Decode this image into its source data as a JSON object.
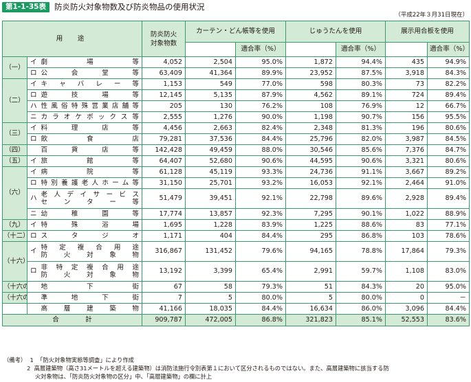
{
  "header": {
    "badge": "第1-1-35表",
    "title": "防炎防火対象物数及び防炎物品の使用状況",
    "as_of": "（平成22年３月31日現在）"
  },
  "columns": {
    "use": "用　途",
    "count": "防炎防火\n対象物数",
    "curtain": "カーテン・どん帳等を使用",
    "carpet": "じゅうたんを使用",
    "display": "展示用合板を使用",
    "rate": "適合率（%）"
  },
  "rows": [
    {
      "cat": "（一）",
      "mark": "イ",
      "name": [
        "劇　　場　　等"
      ],
      "count": "4,052",
      "curtain": "2,504",
      "curtain_rate": "95.0%",
      "carpet": "1,872",
      "carpet_rate": "94.4%",
      "display": "435",
      "display_rate": "94.9%"
    },
    {
      "cat": "",
      "mark": "ロ",
      "name": [
        "公　会　堂　等"
      ],
      "count": "63,409",
      "curtain": "41,364",
      "curtain_rate": "89.9%",
      "carpet": "23,952",
      "carpet_rate": "87.5%",
      "display": "3,918",
      "display_rate": "84.3%"
    },
    {
      "cat": "（二）",
      "mark": "イ",
      "name": [
        "キ ャ バ レ ー 等"
      ],
      "count": "1,153",
      "curtain": "549",
      "curtain_rate": "77.0%",
      "carpet": "598",
      "carpet_rate": "80.3%",
      "display": "73",
      "display_rate": "82.2%"
    },
    {
      "cat": "",
      "mark": "ロ",
      "name": [
        "遊　技　場　等"
      ],
      "count": "12,145",
      "curtain": "5,135",
      "curtain_rate": "87.9%",
      "carpet": "4,562",
      "carpet_rate": "89.1%",
      "display": "724",
      "display_rate": "89.4%"
    },
    {
      "cat": "",
      "mark": "ハ",
      "name": [
        "性風俗特殊営業店舗等"
      ],
      "count": "205",
      "curtain": "130",
      "curtain_rate": "76.2%",
      "carpet": "108",
      "carpet_rate": "76.9%",
      "display": "12",
      "display_rate": "66.7%"
    },
    {
      "cat": "",
      "mark": "ニ",
      "name": [
        "カラオケボックス等"
      ],
      "count": "2,555",
      "curtain": "1,276",
      "curtain_rate": "90.0%",
      "carpet": "1,198",
      "carpet_rate": "90.7%",
      "display": "156",
      "display_rate": "95.5%"
    },
    {
      "cat": "（三）",
      "mark": "イ",
      "name": [
        "料　理　店　等"
      ],
      "count": "4,456",
      "curtain": "2,663",
      "curtain_rate": "82.4%",
      "carpet": "2,348",
      "carpet_rate": "81.3%",
      "display": "196",
      "display_rate": "80.6%"
    },
    {
      "cat": "",
      "mark": "ロ",
      "name": [
        "飲　　食　　店"
      ],
      "count": "79,281",
      "curtain": "37,536",
      "curtain_rate": "84.4%",
      "carpet": "25,796",
      "carpet_rate": "82.0%",
      "display": "3,987",
      "display_rate": "84.5%"
    },
    {
      "cat": "（四）",
      "mark": "",
      "name": [
        "百　貨　店　等"
      ],
      "count": "142,428",
      "curtain": "49,459",
      "curtain_rate": "88.0%",
      "carpet": "30,546",
      "carpet_rate": "85.6%",
      "display": "7,376",
      "display_rate": "84.7%"
    },
    {
      "cat": "（五）",
      "mark": "イ",
      "name": [
        "旅　　館　　等"
      ],
      "count": "64,407",
      "curtain": "52,680",
      "curtain_rate": "90.6%",
      "carpet": "44,595",
      "carpet_rate": "90.6%",
      "display": "3,321",
      "display_rate": "80.6%"
    },
    {
      "cat": "（六）",
      "mark": "イ",
      "name": [
        "病　　院　　等"
      ],
      "count": "61,128",
      "curtain": "45,119",
      "curtain_rate": "93.3%",
      "carpet": "24,736",
      "carpet_rate": "91.1%",
      "display": "3,667",
      "display_rate": "89.2%"
    },
    {
      "cat": "",
      "mark": "ロ",
      "name": [
        "特別養護老人ホーム等"
      ],
      "count": "31,150",
      "curtain": "25,701",
      "curtain_rate": "93.2%",
      "carpet": "16,053",
      "carpet_rate": "92.1%",
      "display": "2,464",
      "display_rate": "91.0%"
    },
    {
      "cat": "",
      "mark": "ハ",
      "name": [
        "老人デイサービス",
        "セ ン タ ー 等"
      ],
      "count": "51,479",
      "curtain": "39,451",
      "curtain_rate": "92.1%",
      "carpet": "22,798",
      "carpet_rate": "89.6%",
      "display": "2,928",
      "display_rate": "89.4%"
    },
    {
      "cat": "",
      "mark": "ニ",
      "name": [
        "幼　稚　園　等"
      ],
      "count": "17,774",
      "curtain": "13,857",
      "curtain_rate": "92.3%",
      "carpet": "7,295",
      "carpet_rate": "90.1%",
      "display": "1,022",
      "display_rate": "88.9%"
    },
    {
      "cat": "（九）",
      "mark": "イ",
      "name": [
        "特　殊　浴　場"
      ],
      "count": "1,695",
      "curtain": "1,228",
      "curtain_rate": "83.9%",
      "carpet": "1,225",
      "carpet_rate": "88.6%",
      "display": "83",
      "display_rate": "77.1%"
    },
    {
      "cat": "（十二）",
      "mark": "ロ",
      "name": [
        "ス　タ　ジ　オ"
      ],
      "count": "1,171",
      "curtain": "404",
      "curtain_rate": "84.4%",
      "carpet": "295",
      "carpet_rate": "86.8%",
      "display": "103",
      "display_rate": "78.6%"
    },
    {
      "cat": "（十六）",
      "mark": "イ",
      "name": [
        "特 定 複 合 用 途",
        "防　火　対　象　物"
      ],
      "count": "316,867",
      "curtain": "131,452",
      "curtain_rate": "79.6%",
      "carpet": "94,165",
      "carpet_rate": "78.8%",
      "display": "17,864",
      "display_rate": "79.3%"
    },
    {
      "cat": "",
      "mark": "ロ",
      "name": [
        "非 特 定 複 合 用 途",
        "防　火　対　象　物"
      ],
      "count": "13,192",
      "curtain": "3,399",
      "curtain_rate": "65.4%",
      "carpet": "2,991",
      "carpet_rate": "59.7%",
      "display": "1,108",
      "display_rate": "83.0%"
    },
    {
      "cat": "（十六の二）",
      "mark": "",
      "name": [
        "地　　下　　街"
      ],
      "count": "67",
      "curtain": "58",
      "curtain_rate": "79.3%",
      "carpet": "51",
      "carpet_rate": "84.3%",
      "display": "20",
      "display_rate": "95.0%"
    },
    {
      "cat": "（十六の三）",
      "mark": "",
      "name": [
        "準　地　下　街"
      ],
      "count": "7",
      "curtain": "5",
      "curtain_rate": "80.0%",
      "carpet": "5",
      "carpet_rate": "80.0%",
      "display": "0",
      "display_rate": "－"
    },
    {
      "cat": "",
      "mark": "",
      "name": [
        "高　層　建　築　物"
      ],
      "count": "41,166",
      "curtain": "18,035",
      "curtain_rate": "84.4%",
      "carpet": "16,634",
      "carpet_rate": "86.0%",
      "display": "3,096",
      "display_rate": "84.4%"
    }
  ],
  "total": {
    "label": "合　　　　計",
    "count": "909,787",
    "curtain": "472,005",
    "curtain_rate": "86.8%",
    "carpet": "321,823",
    "carpet_rate": "85.1%",
    "display": "52,553",
    "display_rate": "83.6%"
  },
  "notes": {
    "lead": "（備考）",
    "n1_no": "1",
    "n1": "「防火対象物実態等調査」により作成",
    "n2_no": "2",
    "n2a": "高層建築物（高さ31メートルを超える建築物）は消防法施行令別表第１において区分されるものではない。また、高層建築物に該当する防",
    "n2b": "火対象物は、「防炎防火対象物の区分」中、「高層建築物」の欄に計上"
  }
}
